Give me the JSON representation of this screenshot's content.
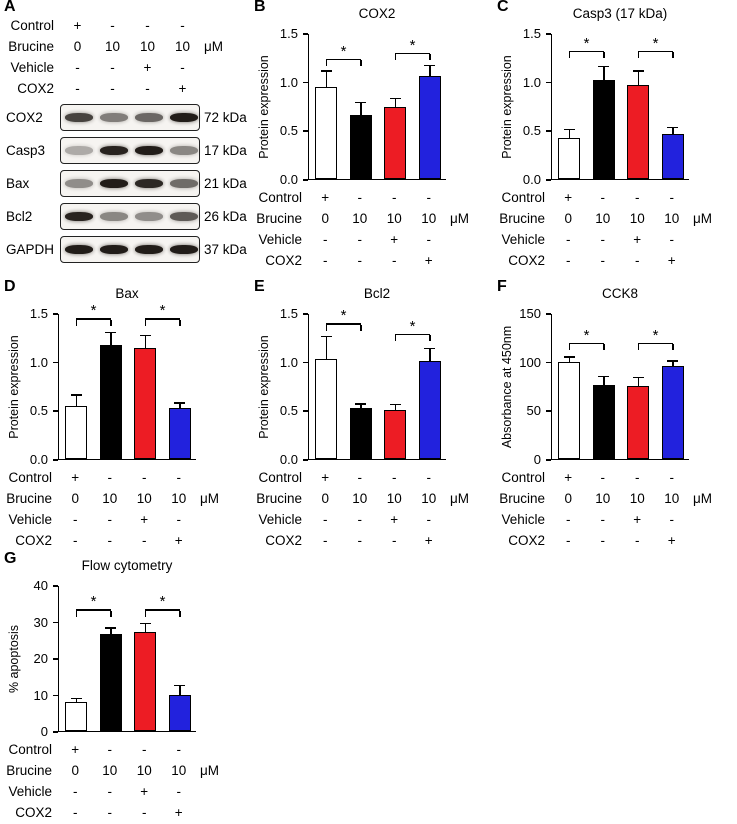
{
  "figure_title": "",
  "treatment": {
    "rows": [
      {
        "label": "Control",
        "values": [
          "+",
          "-",
          "-",
          "-"
        ],
        "unit": ""
      },
      {
        "label": "Brucine",
        "values": [
          "0",
          "10",
          "10",
          "10"
        ],
        "unit": "μM"
      },
      {
        "label": "Vehicle",
        "values": [
          "-",
          "-",
          "+",
          "-"
        ],
        "unit": ""
      },
      {
        "label": "COX2",
        "values": [
          "-",
          "-",
          "-",
          "+"
        ],
        "unit": ""
      }
    ]
  },
  "panel_a": {
    "label": "A",
    "blots": [
      {
        "protein": "COX2",
        "weight": "72 kDa",
        "band_intensities": [
          0.78,
          0.52,
          0.62,
          0.95
        ]
      },
      {
        "protein": "Casp3",
        "weight": "17 kDa",
        "band_intensities": [
          0.32,
          0.92,
          0.95,
          0.48
        ]
      },
      {
        "protein": "Bax",
        "weight": "21 kDa",
        "band_intensities": [
          0.45,
          0.95,
          0.9,
          0.6
        ]
      },
      {
        "protein": "Bcl2",
        "weight": "26 kDa",
        "band_intensities": [
          0.92,
          0.48,
          0.45,
          0.68
        ]
      },
      {
        "protein": "GAPDH",
        "weight": "37 kDa",
        "band_intensities": [
          0.95,
          0.95,
          0.95,
          0.95
        ]
      }
    ]
  },
  "bar_colors": {
    "white": "#ffffff",
    "black": "#000000",
    "red": "#ed1c24",
    "blue": "#2222dd"
  },
  "chart_data": [
    {
      "panel": "B",
      "type": "bar",
      "title": "COX2",
      "ylabel": "Protein expression",
      "ylim": [
        0,
        1.5
      ],
      "yticks": [
        "0.0",
        "0.5",
        "1.0",
        "1.5"
      ],
      "grid": false,
      "legend": false,
      "categories": [
        "Control",
        "Brucine 10 μM",
        "Brucine 10 μM + Vehicle",
        "Brucine 10 μM + COX2"
      ],
      "values": [
        0.95,
        0.66,
        0.74,
        1.06
      ],
      "errors": [
        0.15,
        0.12,
        0.08,
        0.1
      ],
      "bar_fills": [
        "white",
        "black",
        "red",
        "blue"
      ],
      "significance": [
        {
          "from": 0,
          "to": 1,
          "y": 1.22,
          "label": "*"
        },
        {
          "from": 2,
          "to": 3,
          "y": 1.28,
          "label": "*"
        }
      ]
    },
    {
      "panel": "C",
      "type": "bar",
      "title": "Casp3 (17 kDa)",
      "ylabel": "Protein expression",
      "ylim": [
        0,
        1.5
      ],
      "yticks": [
        "0.0",
        "0.5",
        "1.0",
        "1.5"
      ],
      "grid": false,
      "legend": false,
      "categories": [
        "Control",
        "Brucine 10 μM",
        "Brucine 10 μM + Vehicle",
        "Brucine 10 μM + COX2"
      ],
      "values": [
        0.42,
        1.02,
        0.97,
        0.46
      ],
      "errors": [
        0.08,
        0.13,
        0.13,
        0.06
      ],
      "bar_fills": [
        "white",
        "black",
        "red",
        "blue"
      ],
      "significance": [
        {
          "from": 0,
          "to": 1,
          "y": 1.3,
          "label": "*"
        },
        {
          "from": 2,
          "to": 3,
          "y": 1.3,
          "label": "*"
        }
      ]
    },
    {
      "panel": "D",
      "type": "bar",
      "title": "Bax",
      "ylabel": "Protein expression",
      "ylim": [
        0,
        1.5
      ],
      "yticks": [
        "0.0",
        "0.5",
        "1.0",
        "1.5"
      ],
      "grid": false,
      "legend": false,
      "categories": [
        "Control",
        "Brucine 10 μM",
        "Brucine 10 μM + Vehicle",
        "Brucine 10 μM + COX2"
      ],
      "values": [
        0.54,
        1.17,
        1.14,
        0.52
      ],
      "errors": [
        0.11,
        0.12,
        0.12,
        0.05
      ],
      "bar_fills": [
        "white",
        "black",
        "red",
        "blue"
      ],
      "significance": [
        {
          "from": 0,
          "to": 1,
          "y": 1.43,
          "label": "*"
        },
        {
          "from": 2,
          "to": 3,
          "y": 1.43,
          "label": "*"
        }
      ]
    },
    {
      "panel": "E",
      "type": "bar",
      "title": "Bcl2",
      "ylabel": "Protein expression",
      "ylim": [
        0,
        1.5
      ],
      "yticks": [
        "0.0",
        "0.5",
        "1.0",
        "1.5"
      ],
      "grid": false,
      "legend": false,
      "categories": [
        "Control",
        "Brucine 10 μM",
        "Brucine 10 μM + Vehicle",
        "Brucine 10 μM + COX2"
      ],
      "values": [
        1.03,
        0.52,
        0.5,
        1.01
      ],
      "errors": [
        0.22,
        0.04,
        0.05,
        0.12
      ],
      "bar_fills": [
        "white",
        "black",
        "red",
        "blue"
      ],
      "significance": [
        {
          "from": 0,
          "to": 1,
          "y": 1.38,
          "label": "*"
        },
        {
          "from": 2,
          "to": 3,
          "y": 1.27,
          "label": "*"
        }
      ]
    },
    {
      "panel": "F",
      "type": "bar",
      "title": "CCK8",
      "ylabel": "Absorbance at 450nm",
      "ylim": [
        0,
        150
      ],
      "yticks": [
        "0",
        "50",
        "100",
        "150"
      ],
      "grid": false,
      "legend": false,
      "categories": [
        "Control",
        "Brucine 10 μM",
        "Brucine 10 μM + Vehicle",
        "Brucine 10 μM + COX2"
      ],
      "values": [
        100,
        76,
        75,
        96
      ],
      "errors": [
        4,
        8,
        8,
        4
      ],
      "bar_fills": [
        "white",
        "black",
        "red",
        "blue"
      ],
      "significance": [
        {
          "from": 0,
          "to": 1,
          "y": 118,
          "label": "*"
        },
        {
          "from": 2,
          "to": 3,
          "y": 118,
          "label": "*"
        }
      ]
    },
    {
      "panel": "G",
      "type": "bar",
      "title": "Flow cytometry",
      "ylabel": "% apoptosis",
      "ylim": [
        0,
        40
      ],
      "yticks": [
        "0",
        "10",
        "20",
        "30",
        "40"
      ],
      "grid": false,
      "legend": false,
      "categories": [
        "Control",
        "Brucine 10 μM",
        "Brucine 10 μM + Vehicle",
        "Brucine 10 μM + COX2"
      ],
      "values": [
        8,
        26.5,
        27.2,
        9.8
      ],
      "errors": [
        0.7,
        1.5,
        2.0,
        2.5
      ],
      "bar_fills": [
        "white",
        "black",
        "red",
        "blue"
      ],
      "significance": [
        {
          "from": 0,
          "to": 1,
          "y": 33,
          "label": "*"
        },
        {
          "from": 2,
          "to": 3,
          "y": 33,
          "label": "*"
        }
      ]
    }
  ]
}
